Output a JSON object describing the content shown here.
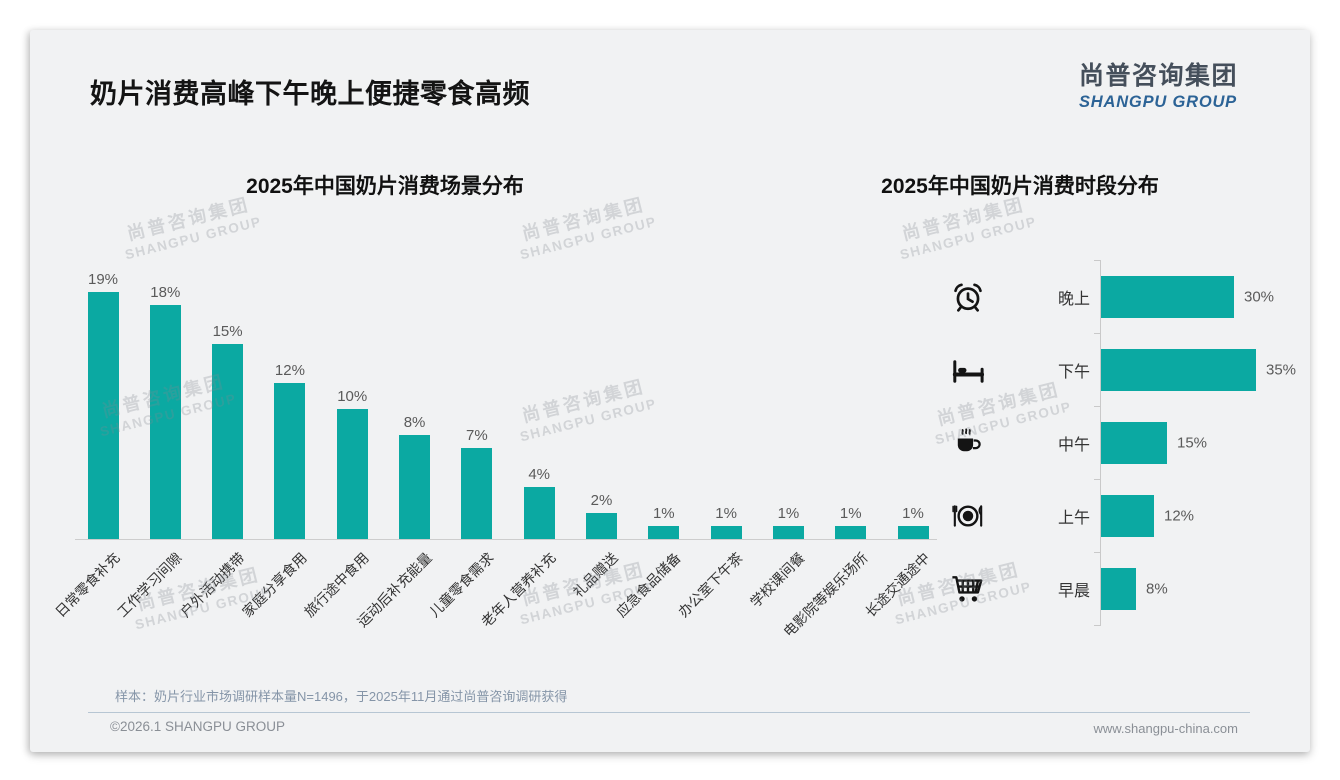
{
  "header": {
    "title": "奶片消费高峰下午晚上便捷零食高频",
    "logo_cn": "尚普咨询集团",
    "logo_en": "SHANGPU GROUP"
  },
  "watermark": {
    "line1": "尚普咨询集团",
    "line2": "SHANGPU GROUP"
  },
  "footer": {
    "sample_note": "样本：奶片行业市场调研样本量N=1496，于2025年11月通过尚普咨询调研获得",
    "copyright": "©2026.1 SHANGPU GROUP",
    "website": "www.shangpu-china.com"
  },
  "colors": {
    "bar_teal": "#0BA9A2",
    "title_text": "#141414",
    "value_label": "#5A5A5A",
    "logo_cn": "#454F5B",
    "logo_en": "#2C6396",
    "divider": "#B7C6D3"
  },
  "chart_data": [
    {
      "type": "bar",
      "orientation": "vertical",
      "title": "2025年中国奶片消费场景分布",
      "unit": "%",
      "ylim": [
        0,
        20
      ],
      "grid": false,
      "categories": [
        "日常零食补充",
        "工作学习间隙",
        "户外活动携带",
        "家庭分享食用",
        "旅行途中食用",
        "运动后补充能量",
        "儿童零食需求",
        "老年人营养补充",
        "礼品赠送",
        "应急食品储备",
        "办公室下午茶",
        "学校课间餐",
        "电影院等娱乐场所",
        "长途交通途中"
      ],
      "values": [
        19,
        18,
        15,
        12,
        10,
        8,
        7,
        4,
        2,
        1,
        1,
        1,
        1,
        1
      ],
      "value_labels": [
        "19%",
        "18%",
        "15%",
        "12%",
        "10%",
        "8%",
        "7%",
        "4%",
        "2%",
        "1%",
        "1%",
        "1%",
        "1%",
        "1%"
      ]
    },
    {
      "type": "bar",
      "orientation": "horizontal",
      "title": "2025年中国奶片消费时段分布",
      "unit": "%",
      "xlim": [
        0,
        40
      ],
      "grid": false,
      "categories": [
        "晚上",
        "下午",
        "中午",
        "上午",
        "早晨"
      ],
      "values": [
        30,
        35,
        15,
        12,
        8
      ],
      "value_labels": [
        "30%",
        "35%",
        "15%",
        "12%",
        "8%"
      ],
      "icons": [
        "alarm-clock-icon",
        "bed-icon",
        "hot-drink-icon",
        "meal-plate-icon",
        "shopping-cart-icon"
      ]
    }
  ]
}
